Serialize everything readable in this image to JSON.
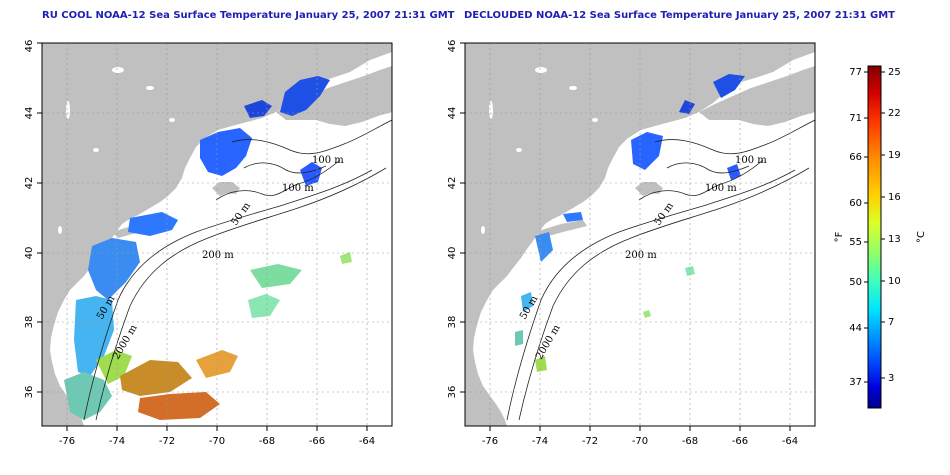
{
  "panels": [
    {
      "id": "left",
      "title": "RU COOL NOAA-12 Sea Surface Temperature January 25, 2007 21:31 GMT",
      "xticks": [
        "-76",
        "-74",
        "-72",
        "-70",
        "-68",
        "-66",
        "-64"
      ],
      "yticks": [
        "36",
        "38",
        "40",
        "42",
        "44",
        "46"
      ],
      "isobaths": [
        "100 m",
        "100 m",
        "50 m",
        "200 m",
        "50 m",
        "2000 m"
      ]
    },
    {
      "id": "right",
      "title": "DECLOUDED NOAA-12 Sea Surface Temperature January 25, 2007 21:31 GMT",
      "xticks": [
        "-76",
        "-74",
        "-72",
        "-70",
        "-68",
        "-66",
        "-64"
      ],
      "yticks": [
        "36",
        "38",
        "40",
        "42",
        "44",
        "46"
      ],
      "isobaths": [
        "100 m",
        "100 m",
        "50 m",
        "200 m",
        "50 m",
        "2000 m"
      ]
    }
  ],
  "map_extent": {
    "lon": [
      -77,
      -63
    ],
    "lat": [
      35,
      46
    ]
  },
  "colorbar": {
    "fahrenheit_label": "°F",
    "celsius_label": "°C",
    "fahrenheit_ticks": [
      "77",
      "71",
      "66",
      "60",
      "55",
      "50",
      "44",
      "37"
    ],
    "celsius_ticks": [
      "25",
      "22",
      "19",
      "16",
      "13",
      "10",
      "7",
      "3"
    ],
    "colors": [
      "#7f0000",
      "#d40000",
      "#ff3c00",
      "#ff8c00",
      "#ffd200",
      "#dcff28",
      "#8cff6e",
      "#3cffbe",
      "#00e6ff",
      "#0096ff",
      "#0046ff",
      "#0000dc",
      "#00008c"
    ]
  },
  "colors": {
    "land": "#c0c0c0",
    "ocean": "#ffffff",
    "grid": "#9a9a9a",
    "title": "#1f1fb4"
  }
}
